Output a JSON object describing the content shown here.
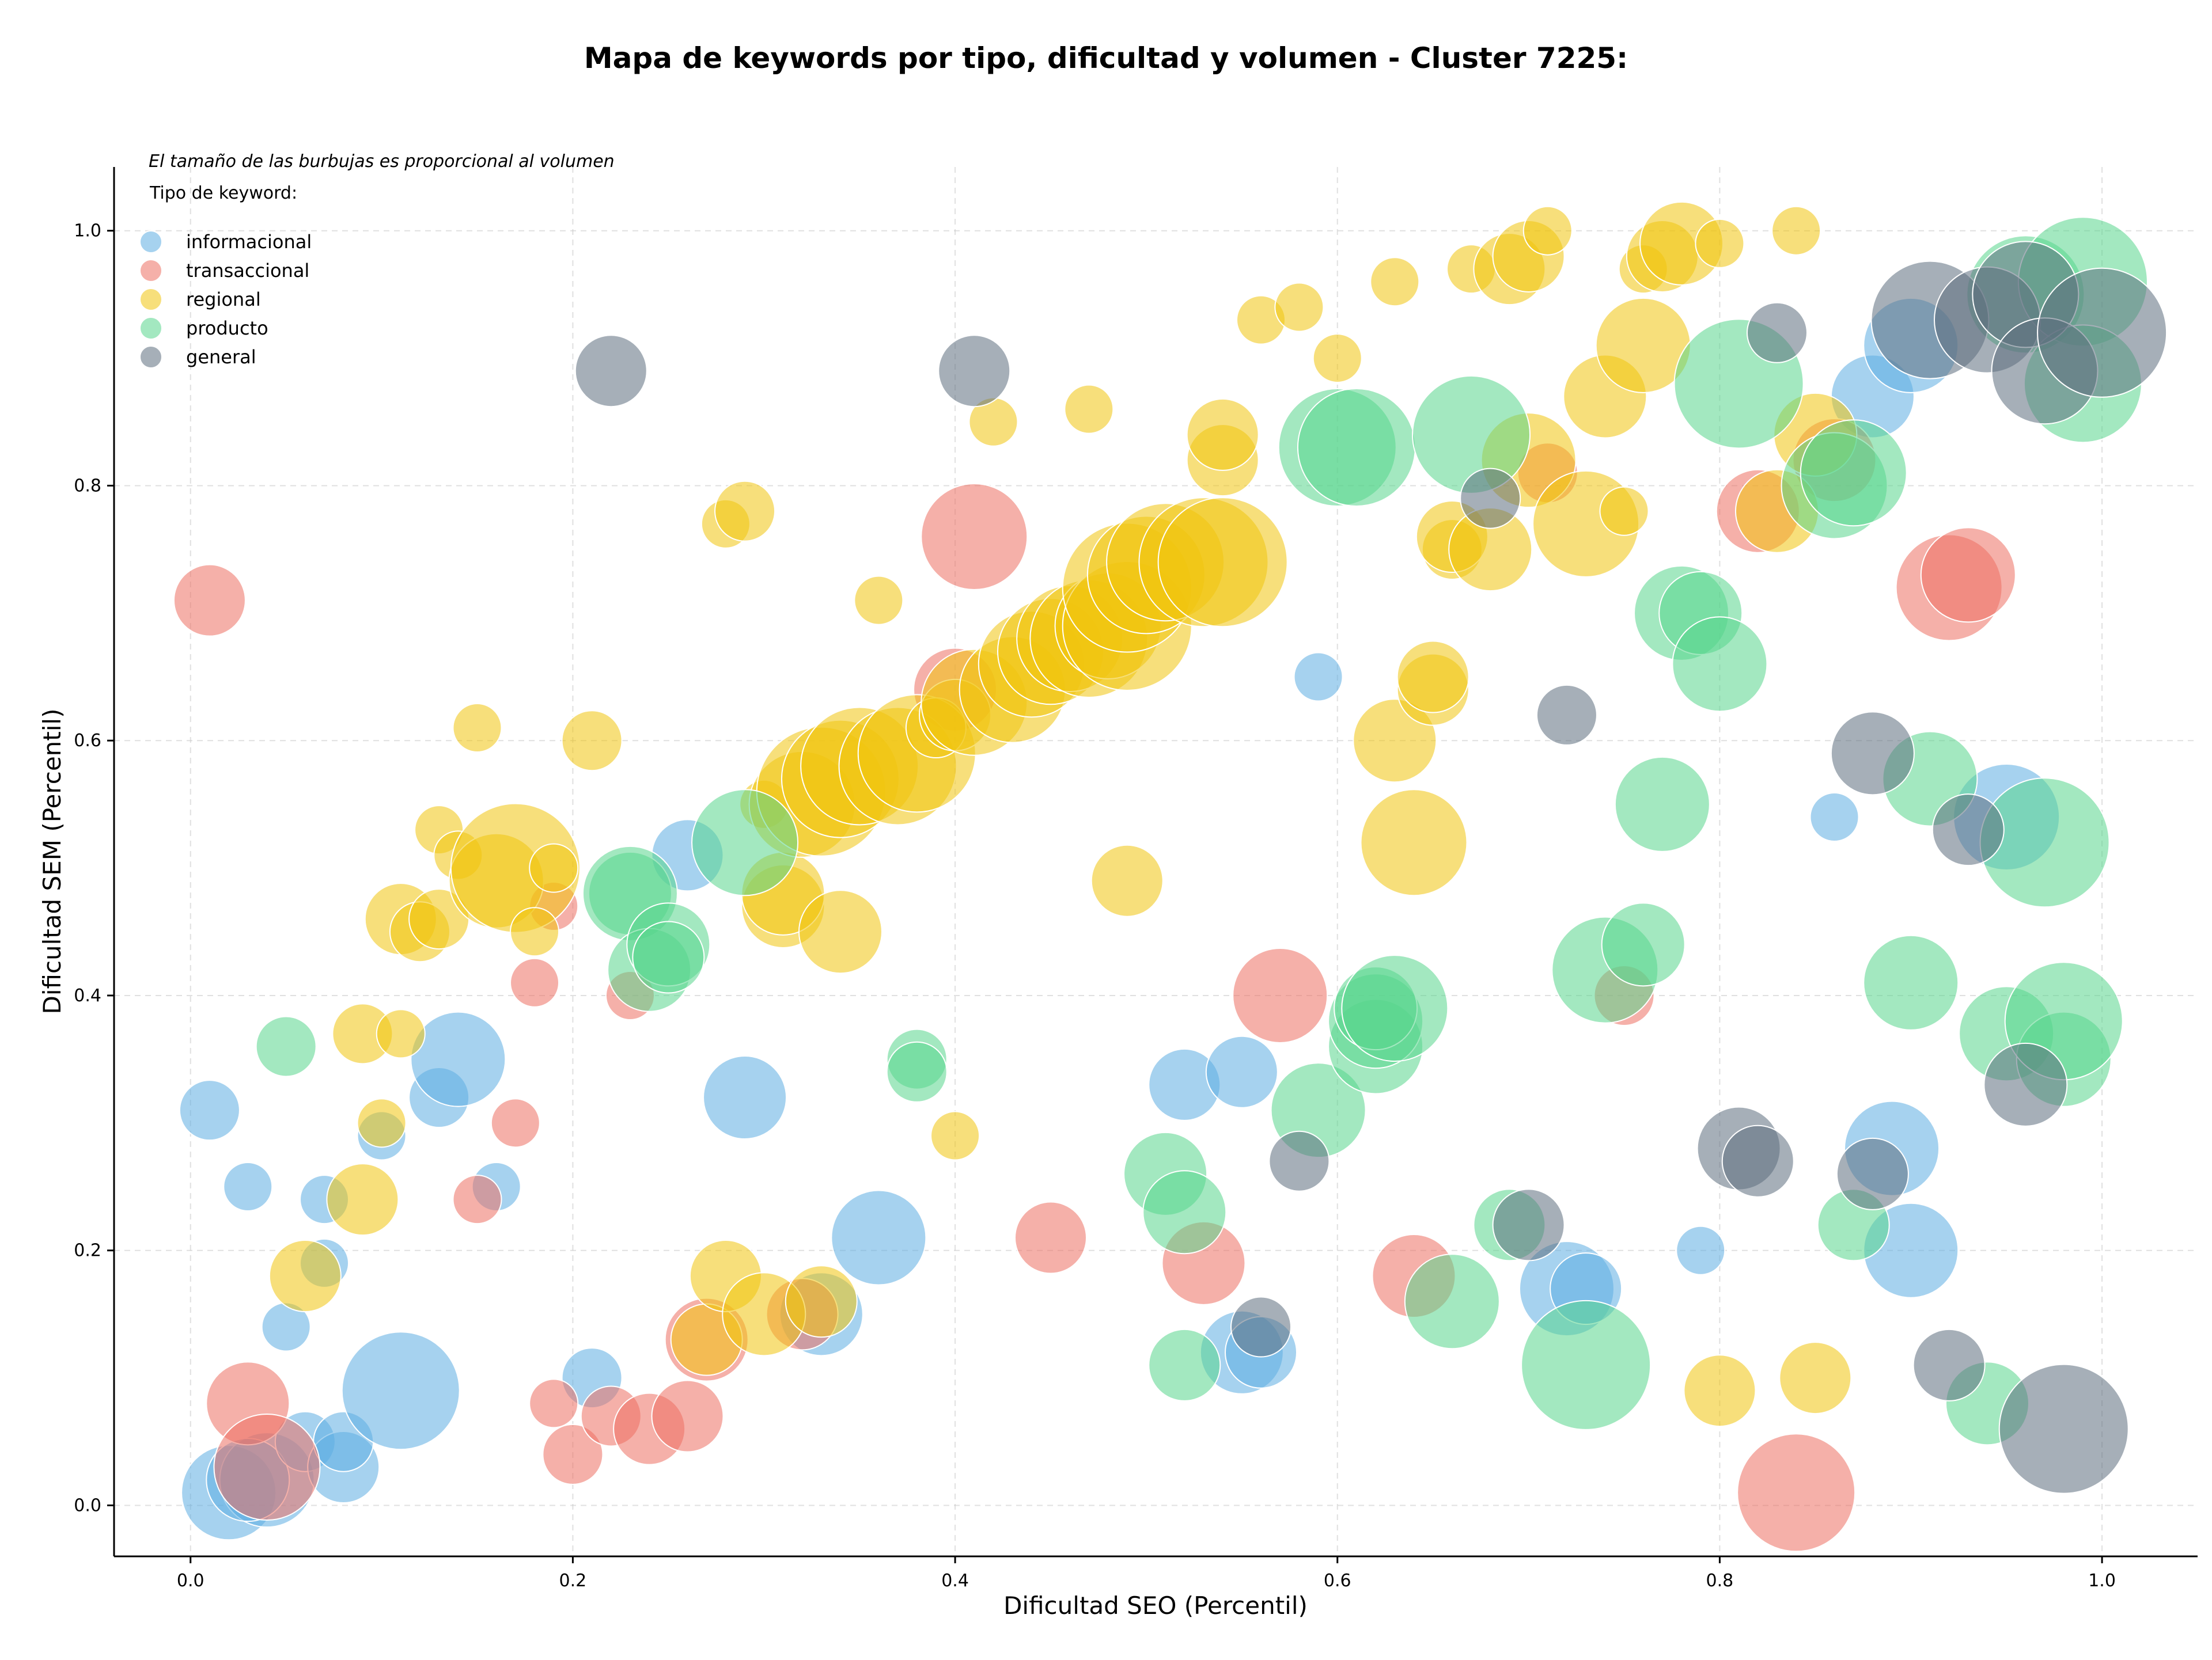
{
  "chart_data": {
    "type": "scatter",
    "title": "Mapa de keywords por tipo, dificultad y volumen - Cluster 7225:",
    "xlabel": "Dificultad SEO (Percentil)",
    "ylabel": "Dificultad SEM (Percentil)",
    "xlim": [
      -0.04,
      1.05
    ],
    "ylim": [
      -0.04,
      1.05
    ],
    "xticks": [
      0.0,
      0.2,
      0.4,
      0.6,
      0.8,
      1.0
    ],
    "yticks": [
      0.0,
      0.2,
      0.4,
      0.6,
      0.8,
      1.0
    ],
    "xtick_labels": [
      "0.0",
      "0.2",
      "0.4",
      "0.6",
      "0.8",
      "1.0"
    ],
    "ytick_labels": [
      "0.0",
      "0.2",
      "0.4",
      "0.6",
      "0.8",
      "1.0"
    ],
    "grid": true,
    "legend_placement": "top-left",
    "legend_note": "El tamaño de las burbujas es proporcional al volumen",
    "legend_title": "Tipo de keyword:",
    "size_encoding": "relative volume",
    "series": [
      {
        "name": "informacional",
        "color": "#5dade2",
        "points": [
          [
            0.01,
            0.31,
            3
          ],
          [
            0.03,
            0.25,
            2
          ],
          [
            0.07,
            0.24,
            2
          ],
          [
            0.07,
            0.19,
            2
          ],
          [
            0.05,
            0.14,
            2
          ],
          [
            0.1,
            0.29,
            2
          ],
          [
            0.13,
            0.32,
            3
          ],
          [
            0.16,
            0.25,
            2
          ],
          [
            0.14,
            0.35,
            6
          ],
          [
            0.02,
            0.01,
            6
          ],
          [
            0.04,
            0.02,
            6
          ],
          [
            0.03,
            0.02,
            5
          ],
          [
            0.06,
            0.05,
            3
          ],
          [
            0.08,
            0.03,
            4
          ],
          [
            0.08,
            0.05,
            3
          ],
          [
            0.11,
            0.09,
            8
          ],
          [
            0.21,
            0.1,
            3
          ],
          [
            0.26,
            0.51,
            4
          ],
          [
            0.29,
            0.32,
            5
          ],
          [
            0.33,
            0.15,
            5
          ],
          [
            0.36,
            0.21,
            6
          ],
          [
            0.52,
            0.33,
            4
          ],
          [
            0.55,
            0.34,
            4
          ],
          [
            0.55,
            0.12,
            5
          ],
          [
            0.56,
            0.12,
            4
          ],
          [
            0.59,
            0.65,
            2
          ],
          [
            0.72,
            0.17,
            6
          ],
          [
            0.73,
            0.17,
            4
          ],
          [
            0.79,
            0.2,
            2
          ],
          [
            0.86,
            0.54,
            2
          ],
          [
            0.88,
            0.87,
            5
          ],
          [
            0.89,
            0.28,
            6
          ],
          [
            0.9,
            0.2,
            6
          ],
          [
            0.9,
            0.91,
            6
          ],
          [
            0.95,
            0.54,
            7
          ]
        ]
      },
      {
        "name": "transaccional",
        "color": "#ec7063",
        "points": [
          [
            0.01,
            0.71,
            4
          ],
          [
            0.03,
            0.08,
            5
          ],
          [
            0.04,
            0.03,
            7
          ],
          [
            0.15,
            0.24,
            2
          ],
          [
            0.17,
            0.3,
            2
          ],
          [
            0.18,
            0.41,
            2
          ],
          [
            0.19,
            0.47,
            2
          ],
          [
            0.19,
            0.08,
            2
          ],
          [
            0.2,
            0.04,
            3
          ],
          [
            0.22,
            0.07,
            3
          ],
          [
            0.23,
            0.4,
            2
          ],
          [
            0.24,
            0.06,
            4
          ],
          [
            0.26,
            0.07,
            4
          ],
          [
            0.27,
            0.13,
            5
          ],
          [
            0.32,
            0.15,
            4
          ],
          [
            0.4,
            0.64,
            5
          ],
          [
            0.41,
            0.76,
            7
          ],
          [
            0.45,
            0.21,
            4
          ],
          [
            0.53,
            0.19,
            5
          ],
          [
            0.57,
            0.4,
            6
          ],
          [
            0.64,
            0.18,
            5
          ],
          [
            0.71,
            0.81,
            3
          ],
          [
            0.75,
            0.4,
            3
          ],
          [
            0.82,
            0.78,
            5
          ],
          [
            0.84,
            0.01,
            8
          ],
          [
            0.86,
            0.82,
            5
          ],
          [
            0.92,
            0.72,
            7
          ],
          [
            0.93,
            0.73,
            6
          ]
        ]
      },
      {
        "name": "regional",
        "color": "#f1c40f",
        "points": [
          [
            0.06,
            0.18,
            4
          ],
          [
            0.09,
            0.37,
            3
          ],
          [
            0.09,
            0.24,
            4
          ],
          [
            0.1,
            0.3,
            2
          ],
          [
            0.11,
            0.37,
            2
          ],
          [
            0.11,
            0.46,
            4
          ],
          [
            0.12,
            0.45,
            3
          ],
          [
            0.13,
            0.53,
            2
          ],
          [
            0.13,
            0.46,
            3
          ],
          [
            0.14,
            0.51,
            2
          ],
          [
            0.15,
            0.61,
            2
          ],
          [
            0.16,
            0.49,
            6
          ],
          [
            0.17,
            0.5,
            9
          ],
          [
            0.18,
            0.45,
            2
          ],
          [
            0.19,
            0.5,
            2
          ],
          [
            0.21,
            0.6,
            3
          ],
          [
            0.27,
            0.13,
            4
          ],
          [
            0.28,
            0.18,
            4
          ],
          [
            0.28,
            0.77,
            2
          ],
          [
            0.29,
            0.78,
            3
          ],
          [
            0.3,
            0.55,
            2
          ],
          [
            0.3,
            0.15,
            5
          ],
          [
            0.31,
            0.47,
            5
          ],
          [
            0.31,
            0.48,
            5
          ],
          [
            0.32,
            0.55,
            7
          ],
          [
            0.33,
            0.56,
            9
          ],
          [
            0.33,
            0.16,
            4
          ],
          [
            0.34,
            0.57,
            8
          ],
          [
            0.34,
            0.45,
            5
          ],
          [
            0.35,
            0.58,
            8
          ],
          [
            0.36,
            0.71,
            2
          ],
          [
            0.37,
            0.58,
            8
          ],
          [
            0.38,
            0.59,
            8
          ],
          [
            0.39,
            0.61,
            3
          ],
          [
            0.4,
            0.62,
            4
          ],
          [
            0.4,
            0.29,
            2
          ],
          [
            0.41,
            0.63,
            7
          ],
          [
            0.42,
            0.85,
            2
          ],
          [
            0.43,
            0.64,
            7
          ],
          [
            0.44,
            0.66,
            7
          ],
          [
            0.45,
            0.67,
            7
          ],
          [
            0.46,
            0.68,
            7
          ],
          [
            0.47,
            0.68,
            8
          ],
          [
            0.47,
            0.86,
            2
          ],
          [
            0.48,
            0.69,
            7
          ],
          [
            0.49,
            0.69,
            9
          ],
          [
            0.49,
            0.72,
            9
          ],
          [
            0.49,
            0.49,
            4
          ],
          [
            0.5,
            0.73,
            8
          ],
          [
            0.51,
            0.74,
            8
          ],
          [
            0.53,
            0.74,
            9
          ],
          [
            0.54,
            0.74,
            9
          ],
          [
            0.54,
            0.82,
            4
          ],
          [
            0.54,
            0.84,
            4
          ],
          [
            0.56,
            0.93,
            2
          ],
          [
            0.58,
            0.94,
            2
          ],
          [
            0.6,
            0.9,
            2
          ],
          [
            0.63,
            0.96,
            2
          ],
          [
            0.63,
            0.6,
            5
          ],
          [
            0.64,
            0.52,
            7
          ],
          [
            0.65,
            0.64,
            4
          ],
          [
            0.65,
            0.65,
            4
          ],
          [
            0.66,
            0.75,
            3
          ],
          [
            0.66,
            0.76,
            4
          ],
          [
            0.67,
            0.97,
            2
          ],
          [
            0.68,
            0.75,
            5
          ],
          [
            0.69,
            0.97,
            4
          ],
          [
            0.7,
            0.98,
            4
          ],
          [
            0.7,
            0.82,
            6
          ],
          [
            0.71,
            1.0,
            2
          ],
          [
            0.73,
            0.77,
            7
          ],
          [
            0.74,
            0.87,
            5
          ],
          [
            0.75,
            0.78,
            2
          ],
          [
            0.76,
            0.97,
            2
          ],
          [
            0.76,
            0.91,
            6
          ],
          [
            0.77,
            0.98,
            4
          ],
          [
            0.78,
            0.99,
            5
          ],
          [
            0.8,
            0.09,
            4
          ],
          [
            0.8,
            0.99,
            2
          ],
          [
            0.83,
            0.78,
            5
          ],
          [
            0.84,
            1.0,
            2
          ],
          [
            0.85,
            0.1,
            4
          ],
          [
            0.85,
            0.84,
            5
          ]
        ]
      },
      {
        "name": "producto",
        "color": "#58d68d",
        "points": [
          [
            0.05,
            0.36,
            3
          ],
          [
            0.23,
            0.48,
            5
          ],
          [
            0.23,
            0.48,
            6
          ],
          [
            0.24,
            0.42,
            5
          ],
          [
            0.25,
            0.44,
            5
          ],
          [
            0.25,
            0.43,
            4
          ],
          [
            0.29,
            0.52,
            7
          ],
          [
            0.38,
            0.35,
            3
          ],
          [
            0.38,
            0.34,
            3
          ],
          [
            0.51,
            0.26,
            5
          ],
          [
            0.52,
            0.23,
            5
          ],
          [
            0.52,
            0.11,
            4
          ],
          [
            0.59,
            0.31,
            6
          ],
          [
            0.6,
            0.83,
            8
          ],
          [
            0.61,
            0.83,
            8
          ],
          [
            0.62,
            0.36,
            6
          ],
          [
            0.62,
            0.38,
            6
          ],
          [
            0.62,
            0.39,
            5
          ],
          [
            0.63,
            0.39,
            7
          ],
          [
            0.66,
            0.16,
            6
          ],
          [
            0.67,
            0.84,
            8
          ],
          [
            0.69,
            0.22,
            4
          ],
          [
            0.73,
            0.11,
            9
          ],
          [
            0.74,
            0.42,
            7
          ],
          [
            0.76,
            0.44,
            5
          ],
          [
            0.77,
            0.55,
            6
          ],
          [
            0.78,
            0.7,
            6
          ],
          [
            0.79,
            0.7,
            5
          ],
          [
            0.8,
            0.66,
            6
          ],
          [
            0.81,
            0.88,
            9
          ],
          [
            0.86,
            0.8,
            7
          ],
          [
            0.87,
            0.81,
            7
          ],
          [
            0.87,
            0.22,
            4
          ],
          [
            0.9,
            0.41,
            6
          ],
          [
            0.91,
            0.57,
            6
          ],
          [
            0.94,
            0.08,
            5
          ],
          [
            0.95,
            0.37,
            6
          ],
          [
            0.96,
            0.95,
            8
          ],
          [
            0.97,
            0.52,
            9
          ],
          [
            0.98,
            0.35,
            6
          ],
          [
            0.98,
            0.38,
            8
          ],
          [
            0.99,
            0.96,
            9
          ],
          [
            0.99,
            0.88,
            8
          ]
        ]
      },
      {
        "name": "general",
        "color": "#5d6d7e",
        "points": [
          [
            0.22,
            0.89,
            4
          ],
          [
            0.41,
            0.89,
            4
          ],
          [
            0.56,
            0.14,
            3
          ],
          [
            0.58,
            0.27,
            3
          ],
          [
            0.68,
            0.79,
            3
          ],
          [
            0.7,
            0.22,
            4
          ],
          [
            0.72,
            0.62,
            3
          ],
          [
            0.81,
            0.28,
            5
          ],
          [
            0.82,
            0.27,
            4
          ],
          [
            0.83,
            0.92,
            3
          ],
          [
            0.88,
            0.26,
            4
          ],
          [
            0.88,
            0.59,
            5
          ],
          [
            0.92,
            0.11,
            4
          ],
          [
            0.91,
            0.93,
            8
          ],
          [
            0.93,
            0.53,
            4
          ],
          [
            0.94,
            0.93,
            7
          ],
          [
            0.96,
            0.33,
            5
          ],
          [
            0.96,
            0.95,
            7
          ],
          [
            0.97,
            0.89,
            7
          ],
          [
            0.98,
            0.06,
            9
          ],
          [
            1.0,
            0.92,
            9
          ]
        ]
      }
    ]
  }
}
